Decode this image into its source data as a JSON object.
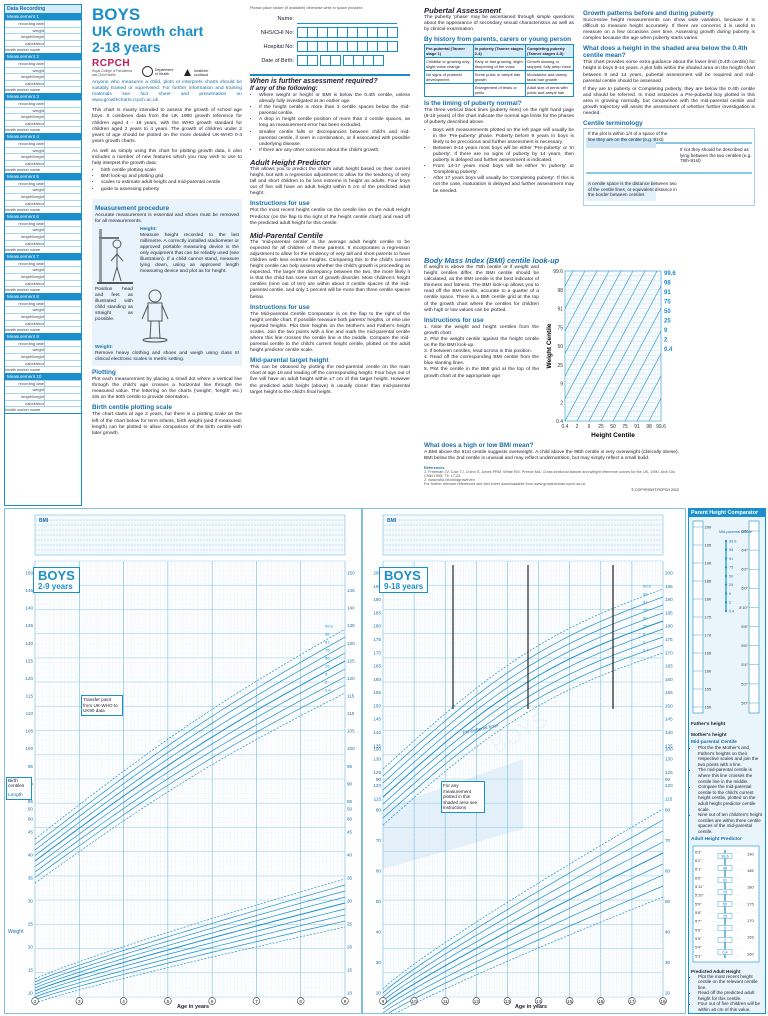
{
  "sidebar": {
    "title": "Data Recording",
    "measurement_prefix": "Measurement",
    "measurements": [
      "1",
      "2",
      "3",
      "4",
      "5",
      "6",
      "7",
      "8",
      "9",
      "10"
    ],
    "rows": [
      "recording date",
      "weight",
      "length/height",
      "calculation",
      "health worker name"
    ]
  },
  "header": {
    "title": "BOYS",
    "subtitle": "UK Growth chart",
    "age_range": "2-18 years",
    "logos": [
      "RCPCH",
      "Department of Health",
      "healthier scotland"
    ],
    "rcpch_caption": "Royal College of Paediatrics and Child Health"
  },
  "intro": {
    "lead": "Anyone who measures a child, plots or interprets charts should be suitably trained or supervised. For further information and training materials see fact sheet and presentation on www.growthcharts.rcpch.ac.uk",
    "p1": "This chart is mainly intended to assess the growth of school age boys. It combines data from the UK 1990 growth reference for children aged 4 - 18 years, with the WHO growth standard for children aged 2 years to 4 years. The growth of children under 2 years of age should be plotted on the more detailed UK-WHO 0-4 years growth charts.",
    "p2": "As well as simply using this chart for plotting growth data, it also includes a number of new features which you may wish to use to help interpret the growth data:",
    "features": [
      "birth centile plotting scale",
      "BMI look-up and plotting grid",
      "scales to estimate adult height and mid-parental centile",
      "guide to assessing puberty"
    ]
  },
  "measurement": {
    "title": "Measurement procedure",
    "p1": "Accurate measurement is essential and shoes must be removed for all measurements.",
    "height_title": "Height:",
    "height_text": "Measure height recorded to the last millimetre. A correctly installed stadiometer or approved portable measuring device is the only equipment that can be reliably used (see illustration). If a child cannot stand, measure lying down, using an approved length measuring device and plot as for height.",
    "position_text": "Position head and feet as illustrated with child standing as straight as possible.",
    "weight_title": "Weight:",
    "weight_text": "Remove heavy clothing and shoes and weigh using class III clinical electronic scales in metric setting.",
    "plotting_title": "Plotting",
    "plotting_text": "Plot each measurement by placing a small dot where a vertical line through the child's age crosses a horizontal line through the measured value. The lettering on the charts ('weight', 'length' etc.) sits on the 50th centile to provide orientation.",
    "birth_title": "Birth centile plotting scale",
    "birth_text": "The chart starts at age 2 years, but there is a plotting scale on the left of the chart below for term infants, birth weight (and if measured, length) can be plotted to allow comparison of the birth centile with later growth."
  },
  "form": {
    "note": "Please place sticker (if available) otherwise write in space provided",
    "fields": [
      "Name:",
      "NHS/CHI No:",
      "Hospital No:",
      "Date of Birth:"
    ]
  },
  "assessment": {
    "title": "When is further assessment required?",
    "subtitle": "If any of the following:",
    "items": [
      "Where weight or height or BMI is below the 0.4th centile, unless already fully investigated at an earlier age.",
      "If the height centile is more than 3 centile spaces below the mid-parental centile.",
      "A drop in height centile position of more than 2 centile spaces, as long as measurement error has been excluded.",
      "Smaller centile falls or discrepancies between child's and mid-parental centile, if seen in combination, or if associated with possible underlying disease.",
      "If there are any other concerns about the child's growth."
    ]
  },
  "adult_height": {
    "title": "Adult Height Predictor",
    "text": "This allows you to predict the child's adult height based on their current height, but with a regression adjustment to allow for the tendency of very tall and short children to be less extreme in height as adults. Four boys out of five will have an adult height within 6 cm of the predicted adult height.",
    "instructions_title": "Instructions for use",
    "instructions": "Plot the most recent height centile on the centile line on the Adult Height Predictor (on the flap to the right of the height centile chart) and read off the predicted adult height for this centile."
  },
  "mid_parental": {
    "title": "Mid-Parental Centile",
    "text": "The 'mid-parental centile' is the average adult height centile to be expected for all children of these parents. It incorporates a regression adjustment to allow for the tendency of very tall and short parents to have children with less extreme heights. Comparing this to the child's current height centile can help assess whether the child's growth is proceeding as expected. The larger the discrepancy between the two, the more likely it is that the child has some sort of growth disorder. Most children's height centiles (nine out of ten) are within about 3 centile spaces of the mid-parental centile, and only 1 percent will be more than three centile spaces below.",
    "instructions_title": "Instructions for use",
    "instructions": "The Mid-parental Centile Comparator is on the flap to the right of the height centile chart. If possible measure both parents' heights, or else use reported heights. Plot their heights on the Mother's and Father's height scales. Join the two points with a line and mark the mid-parental centile where this line crosses the centile line in the middle. Compare the mid-parental centile to the child's current height centile, plotted on the adult height predictor centile scale.",
    "target_title": "Mid-parental target height",
    "target_text": "This can be obtained by plotting the mid-parental centile on the main chart at age 18 and reading off the corresponding height. Four boys out of five will have an adult height within ±7 cm of this target height. However the predicted adult height (above) is usually closer than mid-parental target height to the child's final height."
  },
  "puberty": {
    "title": "Pubertal Assessment",
    "text": "The puberty 'phase' may be ascertained through simple questions about the appearance of secondary sexual characteristics as well as by clinical examination.",
    "by_history": "By history from parents, carers or young person",
    "table_headers": [
      "Pre-pubertal (Tanner stage 1)",
      "In puberty (Tanner stages 2-4)",
      "Completing puberty (Tanner stages 4-5)"
    ],
    "table_rows": [
      [
        "Childlike or growing only, slight voice change",
        "Early or fast growing, slight deepening of the voice",
        "Growth slowing or stopped, fully deep voice"
      ],
      [
        "No signs of pubertal development",
        "Some pubic or armpit hair growth",
        "Moustache and downy facial hair growth"
      ],
      [
        "",
        "Enlargement of testis or penis",
        "Adult size of penis with pubic and armpit hair"
      ]
    ],
    "normal_title": "Is the timing of puberty normal?",
    "normal_text": "The three vertical black lines (puberty lines) on the right hand page (9-18 years) of the chart indicate the normal age limits for the phases of puberty described above.",
    "normal_items": [
      "Boys with measurements plotted on the left page will usually be in the 'Pre-puberty' phase. Puberty before 9 years in boys is likely to be precocious and further assessment is necessary.",
      "Between 9-14 years most boys will be either 'Pre-puberty' or 'In puberty'. If there are no signs of puberty by 14 years, then puberty is delayed and further assessment is indicated.",
      "From 14-17 years most boys will be either 'In puberty' or 'Completing puberty'.",
      "After 17 years boys will usually be 'Completing puberty'. If this is not the case, maturation is delayed and further assessment may be needed."
    ]
  },
  "growth_patterns": {
    "title": "Growth patterns before and during puberty",
    "text": "Successive height measurements can show wide variation, because it is difficult to measure height accurately. If there are concerns it is useful to measure on a few occasions over time. Assessing growth during puberty is complex because the age when puberty starts varies.",
    "shaded_title": "What does a height in the shaded area below the 0.4th centile mean?",
    "shaded_text": "This chart provides some extra guidance about the lower limit (0.4th centile) for height in boys 9-14 years. A plot falls within the shaded area on the height chart between 9 and 14 years, pubertal assessment will be required and mid-parental centile should be assessed.",
    "shaded_text2": "If they are In puberty or Completing puberty, they are below the 0.4th centile and should be referred. In most instances a Pre-pubertal boy plotted in this area is growing normally, but comparison with the mid-parental centile and growth trajectory will assist the assessment of whether further investigation is needed.",
    "terminology_title": "Centile terminology",
    "term1": "If the plot is within 1/4 of a space of the line they are on the centile (e.g. 91st)",
    "term2": "If not they should be described as lying between the two centiles (e.g. 75th-91st)",
    "term3": "A centile space is the distance between two of the centile lines, or equivalent distance in the border between centiles"
  },
  "bmi": {
    "title": "Body Mass Index (BMI) centile look-up",
    "text": "If weight is above the 75th centile or if weight and height centiles differ, the BMI centile should be calculated, as the BMI centile is the best indicator of thinness and fatness. The BMI look-up allows you to read off the BMI centile, accurate to a quarter of a centile space. There is a BMI centile grid at the top of the growth chart where the centiles for children with high or low values can be plotted.",
    "instructions_title": "Instructions for use",
    "steps": [
      "1. Note the weight and height centiles from the growth chart.",
      "2. Plot the weight centile against the height centile on the the BMI look-up.",
      "3. If between centiles, read across in this position.",
      "4. Read off the corresponding BMI centile from the blue slanting lines.",
      "5. Plot the centile in the BMI grid at the top of the growth chart at the appropriate age."
    ],
    "y_axis_label": "Weight Centile",
    "x_axis_label": "Height Centile",
    "ticks": [
      "0.4",
      "2",
      "9",
      "25",
      "50",
      "75",
      "91",
      "98",
      "99.6"
    ],
    "right_labels": [
      "99.6",
      "98",
      "91",
      "75",
      "50",
      "25",
      "9",
      "2",
      "0.4"
    ],
    "what_title": "What does a high or low BMI mean?",
    "what_text": "A BMI above the 91st centile suggests overweight. A child above the 98th centile is very overweight (clinically obese). BMI below the 2nd centile is unusual and may reflect undernutrition, but may simply reflect a small build."
  },
  "references": {
    "title": "References",
    "text": "1. Freeman JV, Cole TJ, Chinn S, Jones PRM, White EM, Preece MA. Cross sectional stature and weight reference curves for the UK, 1990. Arch Dis Child 1995; 73: 17-24.",
    "text2": "2. www.who.int/childgrowth/en",
    "text3": "For further relevant references see fact sheet downloadable from www.growthcharts.rcpch.ac.uk",
    "copyright": "© COPYRIGHT RCPCH 2012"
  },
  "chart_left": {
    "label": "BOYS",
    "age_range": "2-9 years",
    "x_axis_title": "Age in years",
    "ages": [
      "2",
      "3",
      "4",
      "5",
      "6",
      "7",
      "8",
      "9"
    ],
    "height_scale": [
      "150",
      "145",
      "140",
      "135",
      "130",
      "125",
      "120",
      "115",
      "110",
      "105",
      "100",
      "95",
      "90",
      "85",
      "80"
    ],
    "weight_scale": [
      "50",
      "45",
      "40",
      "35",
      "30",
      "25",
      "20",
      "15",
      "10"
    ],
    "centiles": [
      "99.6",
      "98",
      "91",
      "75",
      "50",
      "25",
      "9",
      "2",
      "0.4"
    ],
    "birth_label": "Birth centiles",
    "length_label": "Length",
    "weight_label": "Weight",
    "note": "Transfer point from UK-WHO to UK90 data",
    "bmi_label": "BMI"
  },
  "chart_right": {
    "label": "BOYS",
    "age_range": "9-18 years",
    "x_axis_title": "Age in years",
    "ages": [
      "9",
      "10",
      "11",
      "12",
      "13",
      "14",
      "15",
      "16",
      "17",
      "18"
    ],
    "height_scale": [
      "200",
      "195",
      "190",
      "185",
      "180",
      "175",
      "170",
      "165",
      "160",
      "155",
      "150",
      "145",
      "140",
      "135",
      "130",
      "125",
      "120",
      "115"
    ],
    "weight_scale": [
      "100",
      "90",
      "80",
      "70",
      "60",
      "50",
      "40",
      "30",
      "20"
    ],
    "centiles": [
      "99.6",
      "98",
      "91",
      "75",
      "50",
      "25",
      "9",
      "2",
      "0.4"
    ],
    "shaded_note": "For any measurement plotted in this shaded area see instructions",
    "puberty_label": "Pre-pubertal boys",
    "bmi_label": "BMI"
  },
  "comparator": {
    "title": "Parent Height Comparator",
    "father_label": "Father's height",
    "mother_label": "Mother's height",
    "mid_label": "Mid-parental centile",
    "instructions_title": "Mid-parental Centile",
    "instructions": [
      "Plot the the Mother's and Father's heights on their respective scales and join the two points with a line.",
      "The mid-parental centile is where this line crosses the centile line in the middle.",
      "Compare the mid-parental centile to the child's current height centile, plotted on the adult height predictor centile scale.",
      "Nine out of ten children's height centiles are within three centile spaces of the mid-parental centile."
    ],
    "predictor_title": "Adult Height Predictor",
    "predictor_instructions": [
      "Plot the most recent height centile on the relevant centile line.",
      "Read off the predicted adult height for this centile.",
      "Four out of five children will be within ±6 cm of this value."
    ],
    "predictor_sub": "Predicted Adult Height",
    "cm_scale": [
      "200",
      "195",
      "190",
      "185",
      "180",
      "175",
      "170",
      "165",
      "160",
      "155",
      "150"
    ],
    "ft_scale": [
      "6'6\"",
      "6'4\"",
      "6'2\"",
      "6'0\"",
      "5'10\"",
      "5'8\"",
      "5'6\"",
      "5'4\"",
      "5'2\"",
      "5'0\""
    ],
    "predictor_ft": [
      "6'3\"",
      "6'2\"",
      "6'1\"",
      "6'0\"",
      "5'11\"",
      "5'10\"",
      "5'9\"",
      "5'8\"",
      "5'7\"",
      "5'6\"",
      "5'5\"",
      "5'4\"",
      "5'3\""
    ],
    "predictor_cm": [
      "190",
      "185",
      "180",
      "175",
      "170",
      "165",
      "160"
    ],
    "centile_labels": [
      "99.6",
      "98",
      "91",
      "75",
      "50",
      "25",
      "9",
      "2",
      "0.4"
    ]
  }
}
